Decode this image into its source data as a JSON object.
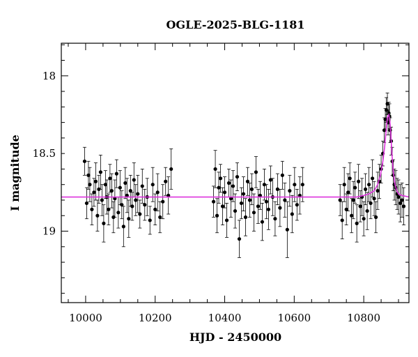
{
  "chart_data": {
    "type": "scatter",
    "title": "OGLE-2025-BLG-1181",
    "xlabel": "HJD - 2450000",
    "ylabel": "I magnitude",
    "xlim": [
      9930,
      10930
    ],
    "ylim": [
      19.46,
      17.79
    ],
    "y_inverted": true,
    "xticks": [
      10000,
      10200,
      10400,
      10600,
      10800
    ],
    "yticks": [
      18,
      18.5,
      19
    ],
    "grid": false,
    "colors": {
      "points": "#000000",
      "model": "#dd33dd",
      "frame": "#000000"
    },
    "series": [
      {
        "kind": "points_with_errorbars",
        "x": [
          9997,
          10003,
          10008,
          10012,
          10018,
          10024,
          10029,
          10034,
          10038,
          10043,
          10047,
          10052,
          10057,
          10061,
          10066,
          10070,
          10075,
          10080,
          10084,
          10089,
          10094,
          10099,
          10104,
          10109,
          10114,
          10119,
          10124,
          10129,
          10134,
          10139,
          10144,
          10150,
          10156,
          10163,
          10170,
          10177,
          10185,
          10193,
          10200,
          10207,
          10214,
          10222,
          10230,
          10238,
          10246,
          10368,
          10373,
          10378,
          10383,
          10388,
          10394,
          10400,
          10406,
          10412,
          10418,
          10424,
          10430,
          10436,
          10442,
          10448,
          10454,
          10460,
          10466,
          10472,
          10478,
          10484,
          10490,
          10496,
          10502,
          10508,
          10514,
          10520,
          10526,
          10532,
          10538,
          10545,
          10552,
          10559,
          10566,
          10573,
          10580,
          10587,
          10594,
          10601,
          10608,
          10616,
          10624,
          10732,
          10738,
          10744,
          10750,
          10755,
          10760,
          10765,
          10770,
          10775,
          10780,
          10785,
          10790,
          10795,
          10800,
          10805,
          10810,
          10815,
          10820,
          10825,
          10830,
          10835,
          10840,
          10845,
          10850,
          10855,
          10859,
          10862,
          10865,
          10868,
          10870,
          10872,
          10874,
          10876,
          10879,
          10882,
          10885,
          10888,
          10892,
          10896,
          10900,
          10905,
          10910,
          10915
        ],
        "y": [
          18.55,
          18.82,
          18.64,
          18.7,
          18.86,
          18.75,
          18.68,
          18.9,
          18.73,
          18.62,
          18.8,
          18.95,
          18.7,
          18.78,
          18.86,
          18.66,
          18.74,
          18.91,
          18.79,
          18.63,
          18.88,
          18.72,
          18.83,
          18.97,
          18.69,
          18.77,
          18.92,
          18.74,
          18.84,
          18.67,
          18.8,
          18.76,
          18.89,
          18.71,
          18.83,
          18.78,
          18.93,
          18.7,
          18.86,
          18.75,
          18.91,
          18.81,
          18.68,
          18.77,
          18.6,
          18.81,
          18.6,
          18.9,
          18.72,
          18.66,
          18.84,
          18.75,
          18.93,
          18.69,
          18.79,
          18.71,
          18.87,
          18.65,
          19.05,
          18.82,
          18.76,
          18.91,
          18.68,
          18.8,
          18.73,
          18.88,
          18.62,
          18.84,
          18.77,
          18.94,
          18.7,
          18.81,
          18.86,
          18.67,
          18.78,
          18.92,
          18.73,
          18.85,
          18.64,
          18.8,
          18.99,
          18.74,
          18.89,
          18.7,
          18.83,
          18.77,
          18.7,
          18.8,
          18.93,
          18.7,
          18.86,
          18.75,
          18.66,
          18.9,
          18.8,
          18.72,
          18.95,
          18.68,
          18.84,
          18.78,
          18.92,
          18.73,
          18.87,
          18.7,
          18.82,
          18.66,
          18.79,
          18.91,
          18.74,
          18.68,
          18.6,
          18.5,
          18.35,
          18.28,
          18.22,
          18.18,
          18.3,
          18.24,
          18.26,
          18.35,
          18.42,
          18.55,
          18.64,
          18.7,
          18.72,
          18.76,
          18.78,
          18.82,
          18.8,
          18.84
        ],
        "err": [
          0.09,
          0.1,
          0.09,
          0.11,
          0.1,
          0.09,
          0.12,
          0.1,
          0.09,
          0.11,
          0.1,
          0.12,
          0.09,
          0.11,
          0.1,
          0.09,
          0.11,
          0.1,
          0.12,
          0.09,
          0.1,
          0.11,
          0.09,
          0.13,
          0.1,
          0.11,
          0.12,
          0.1,
          0.09,
          0.11,
          0.1,
          0.12,
          0.09,
          0.11,
          0.1,
          0.12,
          0.09,
          0.11,
          0.1,
          0.12,
          0.1,
          0.11,
          0.09,
          0.12,
          0.13,
          0.1,
          0.12,
          0.11,
          0.1,
          0.09,
          0.12,
          0.1,
          0.11,
          0.09,
          0.12,
          0.1,
          0.11,
          0.09,
          0.12,
          0.1,
          0.11,
          0.12,
          0.09,
          0.11,
          0.1,
          0.12,
          0.1,
          0.11,
          0.09,
          0.12,
          0.1,
          0.11,
          0.13,
          0.09,
          0.12,
          0.11,
          0.1,
          0.12,
          0.09,
          0.11,
          0.18,
          0.1,
          0.12,
          0.11,
          0.1,
          0.12,
          0.11,
          0.1,
          0.12,
          0.11,
          0.1,
          0.12,
          0.1,
          0.11,
          0.12,
          0.1,
          0.12,
          0.11,
          0.1,
          0.12,
          0.11,
          0.1,
          0.12,
          0.11,
          0.1,
          0.12,
          0.11,
          0.1,
          0.12,
          0.11,
          0.09,
          0.08,
          0.08,
          0.07,
          0.08,
          0.07,
          0.08,
          0.07,
          0.08,
          0.08,
          0.09,
          0.09,
          0.1,
          0.1,
          0.11,
          0.1,
          0.11,
          0.12,
          0.11,
          0.12
        ]
      },
      {
        "kind": "model_curve",
        "baseline": 18.78,
        "x": [
          9930,
          10700,
          10780,
          10800,
          10815,
          10830,
          10840,
          10848,
          10855,
          10860,
          10864,
          10868,
          10872,
          10875,
          10878,
          10881,
          10885,
          10890,
          10895,
          10900,
          10910,
          10930
        ],
        "y": [
          18.78,
          18.78,
          18.78,
          18.77,
          18.76,
          18.74,
          18.7,
          18.64,
          18.55,
          18.46,
          18.36,
          18.27,
          18.25,
          18.29,
          18.38,
          18.5,
          18.62,
          18.7,
          18.74,
          18.76,
          18.77,
          18.78
        ]
      }
    ]
  }
}
